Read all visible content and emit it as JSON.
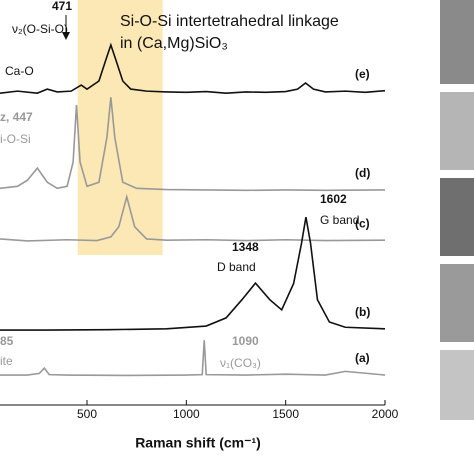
{
  "chart_data": {
    "type": "line",
    "xlabel": "Raman shift (cm⁻¹)",
    "xlim": [
      62,
      2000
    ],
    "xticks": [
      500,
      1000,
      1500,
      2000
    ],
    "ylim": [
      0,
      100
    ],
    "shade": [
      453,
      881
    ],
    "shade_color": "#fbe8b4",
    "annotations": {
      "e471": "471",
      "nu2": "ν₂(O-Si-O)",
      "linkage1": "Si-O-Si intertetrahedral linkage",
      "linkage2": "in (Ca,Mg)SiO₃",
      "cao": "Ca-O",
      "qz": "z, 447",
      "sios": "i-O-Si",
      "d1348": "1348",
      "dband": "D band",
      "g1602": "1602",
      "gband": "G band",
      "a85": "85",
      "ite": "ite",
      "a1090": "1090",
      "nu1": "ν₁(CO₃)"
    },
    "series": [
      {
        "name": "(e)",
        "color": "#111111",
        "x": [
          62,
          150,
          250,
          300,
          350,
          420,
          471,
          500,
          560,
          600,
          620,
          640,
          680,
          720,
          800,
          900,
          1000,
          1100,
          1200,
          1300,
          1400,
          1500,
          1560,
          1600,
          1640,
          1700,
          1800,
          1900,
          2000
        ],
        "values": [
          77,
          77.5,
          77,
          78,
          77.3,
          77.5,
          79,
          78,
          80,
          86,
          88.9,
          86,
          80,
          78,
          77.5,
          77.3,
          77.2,
          77.4,
          77,
          77.3,
          77.2,
          77.4,
          78,
          79.5,
          78,
          77.3,
          77.5,
          77.2,
          77.6
        ]
      },
      {
        "name": "(d)",
        "color": "#999999",
        "x": [
          62,
          150,
          200,
          250,
          300,
          350,
          400,
          430,
          447,
          465,
          500,
          560,
          600,
          620,
          640,
          680,
          750,
          900,
          1100,
          1300,
          1500,
          1700,
          2000
        ],
        "values": [
          53.5,
          54,
          55.5,
          58.5,
          55,
          53.5,
          54,
          60,
          74.1,
          60,
          54,
          55,
          66,
          76,
          66,
          55,
          53.5,
          53.2,
          53.1,
          53,
          53.1,
          53,
          53.1
        ]
      },
      {
        "name": "(c)",
        "color": "#999999",
        "x": [
          62,
          200,
          400,
          550,
          620,
          660,
          700,
          740,
          800,
          900,
          1100,
          1300,
          1500,
          1700,
          2000
        ],
        "values": [
          41,
          40.5,
          40.8,
          40.6,
          41.5,
          44,
          51.4,
          44,
          41,
          40.7,
          40.8,
          40.6,
          40.8,
          40.6,
          40.7
        ]
      },
      {
        "name": "(b)",
        "color": "#111111",
        "x": [
          62,
          300,
          600,
          900,
          1100,
          1200,
          1280,
          1348,
          1420,
          1480,
          1540,
          1580,
          1602,
          1625,
          1660,
          1720,
          1800,
          2000
        ],
        "values": [
          18.5,
          18.5,
          18.6,
          18.8,
          19.5,
          21.5,
          26,
          30.1,
          26,
          23.5,
          30,
          40,
          46.4,
          40,
          26,
          20.5,
          19.2,
          18.8
        ]
      },
      {
        "name": "(a)",
        "color": "#999999",
        "x": [
          62,
          200,
          260,
          285,
          310,
          400,
          700,
          1000,
          1080,
          1090,
          1100,
          1300,
          1500,
          1700,
          1800,
          2000
        ],
        "values": [
          7.4,
          7.4,
          7.8,
          9.1,
          7.5,
          7.4,
          7.3,
          7.4,
          7.5,
          16,
          7.5,
          7.4,
          7.6,
          7.4,
          8.3,
          7.4
        ]
      }
    ]
  }
}
